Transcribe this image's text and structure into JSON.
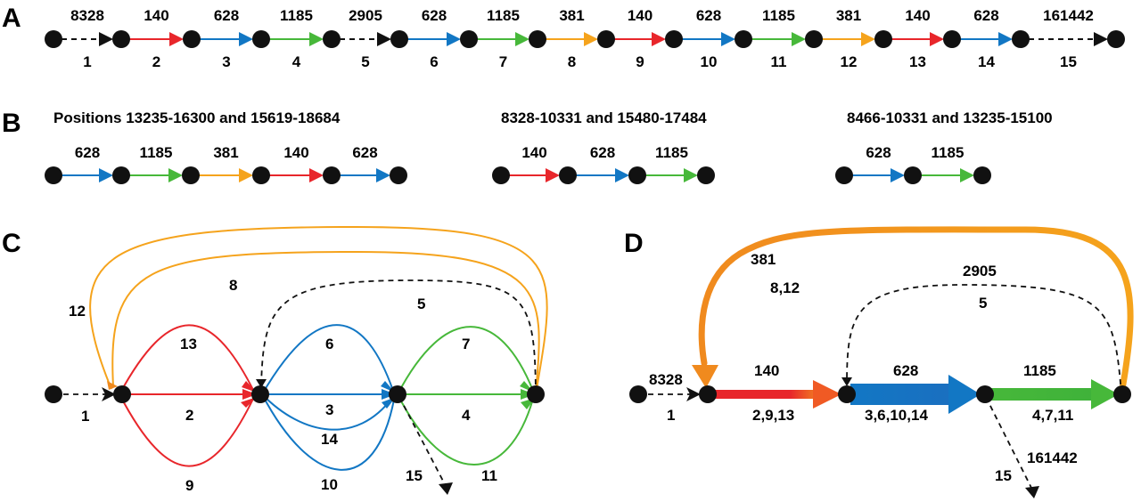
{
  "colors": {
    "red": "#e8262b",
    "blue": "#1277c4",
    "green": "#47b83a",
    "orange": "#f5a31c",
    "black": "#111111",
    "node": "#111111"
  },
  "panels": {
    "a": "A",
    "b": "B",
    "c": "C",
    "d": "D"
  },
  "panel_a": {
    "segments": [
      {
        "top": "8328",
        "bottom": "1"
      },
      {
        "top": "140",
        "bottom": "2"
      },
      {
        "top": "628",
        "bottom": "3"
      },
      {
        "top": "1185",
        "bottom": "4"
      },
      {
        "top": "2905",
        "bottom": "5"
      },
      {
        "top": "628",
        "bottom": "6"
      },
      {
        "top": "1185",
        "bottom": "7"
      },
      {
        "top": "381",
        "bottom": "8"
      },
      {
        "top": "140",
        "bottom": "9"
      },
      {
        "top": "628",
        "bottom": "10"
      },
      {
        "top": "1185",
        "bottom": "11"
      },
      {
        "top": "381",
        "bottom": "12"
      },
      {
        "top": "140",
        "bottom": "13"
      },
      {
        "top": "628",
        "bottom": "14"
      },
      {
        "top": "161442",
        "bottom": "15"
      }
    ]
  },
  "panel_b": {
    "groups": [
      {
        "header": "Positions 13235-16300 and 15619-18684",
        "labels": [
          "628",
          "1185",
          "381",
          "140",
          "628"
        ]
      },
      {
        "header": "8328-10331 and 15480-17484",
        "labels": [
          "140",
          "628",
          "1185"
        ]
      },
      {
        "header": "8466-10331 and 13235-15100",
        "labels": [
          "628",
          "1185"
        ]
      }
    ]
  },
  "panel_c": {
    "labels": [
      "1",
      "2",
      "3",
      "4",
      "5",
      "6",
      "7",
      "8",
      "9",
      "10",
      "11",
      "12",
      "13",
      "14",
      "15"
    ]
  },
  "panel_d": {
    "len_8328": "8328",
    "idx_1": "1",
    "len_140": "140",
    "idx_2_9_13": "2,9,13",
    "len_628": "628",
    "idx_3_6_10_14": "3,6,10,14",
    "len_1185": "1185",
    "idx_4_7_11": "4,7,11",
    "len_381": "381",
    "idx_8_12": "8,12",
    "len_2905": "2905",
    "idx_5": "5",
    "len_161442": "161442",
    "idx_15": "15"
  }
}
